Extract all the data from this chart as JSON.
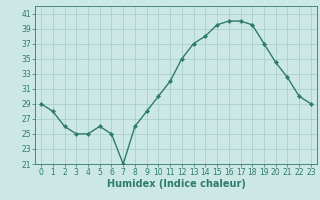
{
  "x": [
    0,
    1,
    2,
    3,
    4,
    5,
    6,
    7,
    8,
    9,
    10,
    11,
    12,
    13,
    14,
    15,
    16,
    17,
    18,
    19,
    20,
    21,
    22,
    23
  ],
  "y": [
    29,
    28,
    26,
    25,
    25,
    26,
    25,
    21,
    26,
    28,
    30,
    32,
    35,
    37,
    38,
    39.5,
    40,
    40,
    39.5,
    37,
    34.5,
    32.5,
    30,
    29
  ],
  "line_color": "#2d7a6e",
  "marker": "D",
  "marker_size": 2.2,
  "bg_color": "#cce8e4",
  "grid_color": "#aacfcb",
  "xlabel": "Humidex (Indice chaleur)",
  "xlim": [
    -0.5,
    23.5
  ],
  "ylim": [
    21,
    42
  ],
  "yticks": [
    21,
    23,
    25,
    27,
    29,
    31,
    33,
    35,
    37,
    39,
    41
  ],
  "xticks": [
    0,
    1,
    2,
    3,
    4,
    5,
    6,
    7,
    8,
    9,
    10,
    11,
    12,
    13,
    14,
    15,
    16,
    17,
    18,
    19,
    20,
    21,
    22,
    23
  ],
  "tick_color": "#2d7a6e",
  "xlabel_fontsize": 7,
  "tick_fontsize": 5.5,
  "line_width": 1.0
}
